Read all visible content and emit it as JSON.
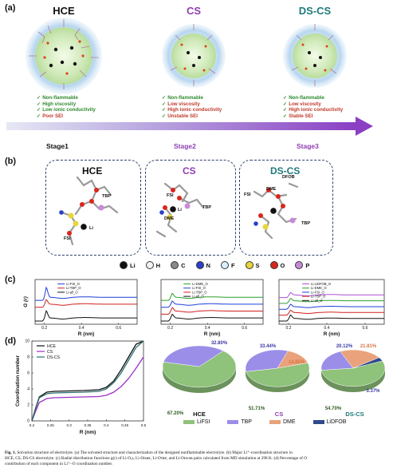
{
  "panel_a": {
    "label": "(a)",
    "stages": [
      {
        "title": "HCE",
        "title_color": "#111111",
        "stage_label": "Stage1",
        "stage_color": "#111111",
        "features": [
          {
            "text": "Non-flammable",
            "color": "#2e8b2e"
          },
          {
            "text": "High viscosity",
            "color": "#2e8b2e"
          },
          {
            "text": "Low ionic conductivity",
            "color": "#2e8b2e"
          },
          {
            "text": "Poor SEI",
            "color": "#c0392b"
          }
        ]
      },
      {
        "title": "CS",
        "title_color": "#8e3fb0",
        "stage_label": "Stage2",
        "stage_color": "#8e3fb0",
        "features": [
          {
            "text": "Non-flammable",
            "color": "#2e8b2e"
          },
          {
            "text": "Low viscosity",
            "color": "#c0392b"
          },
          {
            "text": "High ionic conductivity",
            "color": "#c0392b"
          },
          {
            "text": "Unstable SEI",
            "color": "#c0392b"
          }
        ]
      },
      {
        "title": "DS-CS",
        "title_color": "#1f7a7a",
        "stage_label": "Stage3",
        "stage_color": "#8e3fb0",
        "features": [
          {
            "text": "Non-flammable",
            "color": "#2e8b2e"
          },
          {
            "text": "Low viscosity",
            "color": "#c0392b"
          },
          {
            "text": "High ionic conductivity",
            "color": "#c0392b"
          },
          {
            "text": "Stable SEI",
            "color": "#c0392b"
          }
        ]
      }
    ]
  },
  "panel_b": {
    "label": "(b)",
    "boxes": [
      {
        "title": "HCE",
        "title_color": "#111111",
        "labels": {
          "tbp": "TBP",
          "fsi": "FSI",
          "li": "Li"
        }
      },
      {
        "title": "CS",
        "title_color": "#8e3fb0",
        "labels": {
          "fsi": "FSI",
          "tbp": "TBP",
          "dme": "DME",
          "li": "Li"
        }
      },
      {
        "title": "DS-CS",
        "title_color": "#1f7a7a",
        "labels": {
          "dfob": "DFOB",
          "dme": "DME",
          "fsi": "FSI",
          "tbp": "TBP"
        }
      }
    ],
    "legend": [
      {
        "symbol": "Li",
        "color": "#111111"
      },
      {
        "symbol": "H",
        "color": "#f2f2f2"
      },
      {
        "symbol": "C",
        "color": "#8a8a8a"
      },
      {
        "symbol": "N",
        "color": "#2b3fc8"
      },
      {
        "symbol": "F",
        "color": "#d8f0ff"
      },
      {
        "symbol": "S",
        "color": "#e8d63a"
      },
      {
        "symbol": "O",
        "color": "#d9261c"
      },
      {
        "symbol": "P",
        "color": "#c98ad8"
      }
    ]
  },
  "panel_c_label": "(c)",
  "panel_d_label": "(d)",
  "chart_data": [
    {
      "type": "line",
      "panel": "c-HCE",
      "xlabel": "R (nm)",
      "ylabel": "G (r)",
      "xlim": [
        0.15,
        0.7
      ],
      "xticks": [
        0.2,
        0.4,
        0.6
      ],
      "series": [
        {
          "name": "Li-FSI_O",
          "color": "#1f3fd8",
          "offset": 3,
          "peak_x": 0.21,
          "peak_h": 3.2
        },
        {
          "name": "Li-TBP_O",
          "color": "#d21f1f",
          "offset": 2,
          "peak_x": 0.21,
          "peak_h": 1.5
        },
        {
          "name": "Li-all_O",
          "color": "#111111",
          "offset": 0,
          "peak_x": 0.21,
          "peak_h": 2.3
        }
      ]
    },
    {
      "type": "line",
      "panel": "c-CS",
      "xlabel": "R (nm)",
      "ylabel": "",
      "xlim": [
        0.15,
        0.7
      ],
      "xticks": [
        0.2,
        0.4,
        0.6
      ],
      "series": [
        {
          "name": "Li-DME_O",
          "color": "#2ca02c",
          "offset": 3,
          "peak_x": 0.21,
          "peak_h": 1.3
        },
        {
          "name": "Li-FSI_O",
          "color": "#1f3fd8",
          "offset": 2,
          "peak_x": 0.21,
          "peak_h": 1.0
        },
        {
          "name": "Li-TBP_O",
          "color": "#d21f1f",
          "offset": 1,
          "peak_x": 0.21,
          "peak_h": 1.1
        },
        {
          "name": "Li-all_O",
          "color": "#111111",
          "offset": 0,
          "peak_x": 0.21,
          "peak_h": 1.2
        }
      ]
    },
    {
      "type": "line",
      "panel": "c-DS-CS",
      "xlabel": "R (nm)",
      "ylabel": "",
      "xlim": [
        0.15,
        0.7
      ],
      "xticks": [
        0.2,
        0.4,
        0.6
      ],
      "series": [
        {
          "name": "Li-LiDFOB_O",
          "color": "#b04fd6",
          "offset": 4,
          "peak_x": 0.21,
          "peak_h": 0.9
        },
        {
          "name": "Li-DME_O",
          "color": "#2ca02c",
          "offset": 3,
          "peak_x": 0.21,
          "peak_h": 0.9
        },
        {
          "name": "Li-FSI_O",
          "color": "#1f3fd8",
          "offset": 2,
          "peak_x": 0.21,
          "peak_h": 0.9
        },
        {
          "name": "Li-TBP_O",
          "color": "#d21f1f",
          "offset": 1,
          "peak_x": 0.21,
          "peak_h": 0.9
        },
        {
          "name": "Li-all_O",
          "color": "#111111",
          "offset": 0,
          "peak_x": 0.21,
          "peak_h": 1.3
        }
      ]
    },
    {
      "type": "line",
      "panel": "d-coordination",
      "xlabel": "R (nm)",
      "ylabel": "Coordination number",
      "xlim": [
        0.2,
        0.5
      ],
      "ylim": [
        0,
        10
      ],
      "xticks": [
        0.2,
        0.25,
        0.3,
        0.35,
        0.4,
        0.45,
        0.5
      ],
      "yticks": [
        0,
        2,
        4,
        6,
        8,
        10
      ],
      "series": [
        {
          "name": "HCE",
          "color": "#111111",
          "x": [
            0.2,
            0.21,
            0.22,
            0.24,
            0.26,
            0.3,
            0.34,
            0.38,
            0.4,
            0.42,
            0.44,
            0.46,
            0.48,
            0.5
          ],
          "y": [
            0,
            1.6,
            3.0,
            3.6,
            3.7,
            3.75,
            3.8,
            3.9,
            4.2,
            5.0,
            6.4,
            8.0,
            9.6,
            10.8
          ]
        },
        {
          "name": "CS",
          "color": "#9b30c8",
          "x": [
            0.2,
            0.21,
            0.22,
            0.24,
            0.26,
            0.3,
            0.34,
            0.38,
            0.4,
            0.42,
            0.44,
            0.46,
            0.48,
            0.5
          ],
          "y": [
            0,
            1.2,
            2.3,
            2.8,
            2.9,
            2.95,
            3.0,
            3.05,
            3.2,
            3.6,
            4.3,
            5.3,
            6.6,
            8.0
          ]
        },
        {
          "name": "DS-CS",
          "color": "#2f6f6f",
          "x": [
            0.2,
            0.21,
            0.22,
            0.24,
            0.26,
            0.3,
            0.34,
            0.38,
            0.4,
            0.42,
            0.44,
            0.46,
            0.48,
            0.5
          ],
          "y": [
            0,
            1.5,
            2.9,
            3.4,
            3.5,
            3.55,
            3.6,
            3.7,
            4.0,
            4.8,
            6.0,
            7.6,
            9.2,
            10.6
          ]
        }
      ]
    },
    {
      "type": "pie",
      "panel": "d-HCE",
      "title": "HCE",
      "slices": [
        {
          "label": "LiFSI",
          "value": 67.2,
          "text": "67.20%",
          "color": "#8fc27a"
        },
        {
          "label": "TBP",
          "value": 32.8,
          "text": "32.80%",
          "color": "#9a8ee8"
        }
      ]
    },
    {
      "type": "pie",
      "panel": "d-CS",
      "title": "CS",
      "slices": [
        {
          "label": "LiFSI",
          "value": 51.71,
          "text": "51.71%",
          "color": "#8fc27a"
        },
        {
          "label": "TBP",
          "value": 33.44,
          "text": "33.44%",
          "color": "#9a8ee8"
        },
        {
          "label": "DME",
          "value": 14.85,
          "text": "14.85%",
          "color": "#e9a27c"
        }
      ]
    },
    {
      "type": "pie",
      "panel": "d-DS-CS",
      "title": "DS-CS",
      "slices": [
        {
          "label": "LiFSI",
          "value": 54.7,
          "text": "54.70%",
          "color": "#8fc27a"
        },
        {
          "label": "TBP",
          "value": 20.12,
          "text": "20.12%",
          "color": "#9a8ee8"
        },
        {
          "label": "DME",
          "value": 21.81,
          "text": "21.81%",
          "color": "#e9a27c"
        },
        {
          "label": "LiDFOB",
          "value": 3.37,
          "text": "3.37%",
          "color": "#2f4a8c"
        }
      ]
    }
  ],
  "pie_legend": [
    {
      "label": "LiFSI",
      "color": "#8fc27a"
    },
    {
      "label": "TBP",
      "color": "#9a8ee8"
    },
    {
      "label": "DME",
      "color": "#e9a27c"
    },
    {
      "label": "LiDFOB",
      "color": "#2f4a8c"
    }
  ],
  "caption": {
    "lead": "Fig. 1.",
    "line1": "Solvation structure of electrolyte. (a) The solvated structure and characterization of the designed nonflammable electrolyte. (b) Major Li⁺-coordination structure in",
    "line2": "HCE, CS, DS-CS electrolyte. (c) Radial distribution functions g(r) of Li-Oₐₗₗ, Li-Oᴅᴍᴇ, Li-Oᴛʙᴘ, and Li-Oᴅᴜᴏʙ pairs calculated from MD simulation at 298 K. (d) Percentage of O",
    "line3": "contribution of each component in Li⁺−O coordination number."
  }
}
